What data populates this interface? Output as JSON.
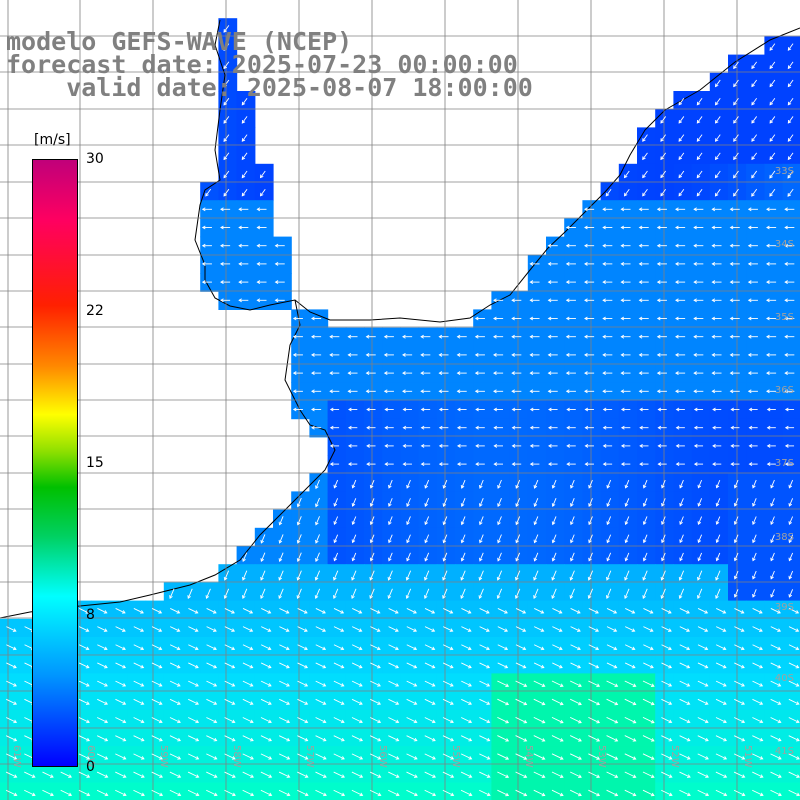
{
  "title": {
    "line1": "modelo GEFS-WAVE (NCEP)",
    "line2": "forecast date: 2025-07-23 00:00:00",
    "line3": "    valid date: 2025-08-07 18:00:00"
  },
  "colorbar": {
    "unit": "[m/s]",
    "ticks": [
      "30",
      "22",
      "15",
      "8",
      "0"
    ],
    "range": [
      0,
      30
    ],
    "colors": [
      "#0000ff",
      "#0096ff",
      "#00ffff",
      "#00d060",
      "#00c000",
      "#ffff00",
      "#ff8800",
      "#ff0000",
      "#c0007a"
    ]
  },
  "lat_labels": [
    "33S",
    "34S",
    "35S",
    "36S",
    "37S",
    "38S",
    "39S",
    "40S",
    "41S"
  ],
  "lon_labels": [
    "61W",
    "60W",
    "59W",
    "58W",
    "57W",
    "56W",
    "55W",
    "54W",
    "53W",
    "52W",
    "51W"
  ],
  "land_color": "#ffffff",
  "grid_color": "#808080",
  "arrow_color": "#ffffff"
}
